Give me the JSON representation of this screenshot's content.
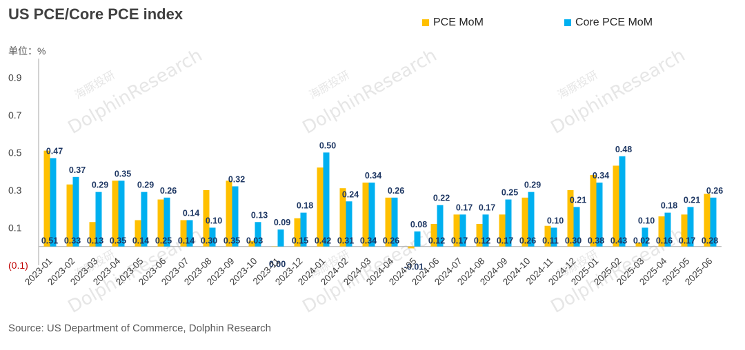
{
  "header": {
    "title": "US PCE/Core PCE index",
    "unit": "单位：%"
  },
  "footer": {
    "source": "Source: US Department of Commerce, Dolphin Research"
  },
  "watermark": {
    "brand_cn": "海豚投研",
    "brand_en": "DolphinResearch"
  },
  "colors": {
    "pce": "#FFC000",
    "core": "#00B0F0",
    "label_dark": "#1F3864",
    "negative_tick": "#C00000",
    "axis": "#A6A6A6",
    "text": "#404040"
  },
  "chart_data": {
    "type": "bar",
    "title": "US PCE/Core PCE index",
    "xlabel": "",
    "ylabel": "单位：%",
    "ylim": [
      -0.1,
      1.0
    ],
    "yticks": [
      "(0.1)",
      "0.1",
      "0.3",
      "0.5",
      "0.7",
      "0.9"
    ],
    "legend_position": "top-right",
    "grid": false,
    "categories": [
      "2023-01",
      "2023-02",
      "2023-03",
      "2023-04",
      "2023-05",
      "2023-06",
      "2023-07",
      "2023-08",
      "2023-09",
      "2023-10",
      "2023-11",
      "2023-12",
      "2024-01",
      "2024-02",
      "2024-03",
      "2024-04",
      "2024-05",
      "2024-06",
      "2024-07",
      "2024-08",
      "2024-09",
      "2024-10",
      "2024-11",
      "2024-12",
      "2025-01",
      "2025-02",
      "2025-03",
      "2025-04",
      "2025-05",
      "2025-06"
    ],
    "series": [
      {
        "name": "PCE MoM",
        "values": [
          0.51,
          0.33,
          0.13,
          0.35,
          0.14,
          0.25,
          0.14,
          0.3,
          0.35,
          0.03,
          0.0,
          0.15,
          0.42,
          0.31,
          0.34,
          0.26,
          -0.01,
          0.12,
          0.17,
          0.12,
          0.17,
          0.26,
          0.11,
          0.3,
          0.38,
          0.43,
          0.02,
          0.16,
          0.17,
          0.28
        ],
        "labels": [
          "0.51",
          "0.33",
          "0.13",
          "0.35",
          "0.14",
          "0.25",
          "0.14",
          "0.30",
          "0.35",
          "0.03",
          "0.00",
          "0.15",
          "0.42",
          "0.31",
          "0.34",
          "0.26",
          "-0.01",
          "0.12",
          "0.17",
          "0.12",
          "0.17",
          "0.26",
          "0.11",
          "0.30",
          "0.38",
          "0.43",
          "0.02",
          "0.16",
          "0.17",
          "0.28"
        ]
      },
      {
        "name": "Core PCE MoM",
        "values": [
          0.47,
          0.37,
          0.29,
          0.35,
          0.29,
          0.26,
          0.14,
          0.1,
          0.32,
          0.13,
          0.09,
          0.18,
          0.5,
          0.24,
          0.34,
          0.26,
          0.08,
          0.22,
          0.17,
          0.17,
          0.25,
          0.29,
          0.1,
          0.21,
          0.34,
          0.48,
          0.1,
          0.18,
          0.21,
          0.26
        ],
        "labels": [
          "0.47",
          "0.37",
          "0.29",
          "0.35",
          "0.29",
          "0.26",
          "0.14",
          "0.10",
          "0.32",
          "0.13",
          "0.09",
          "0.18",
          "0.50",
          "0.24",
          "0.34",
          "0.26",
          "0.08",
          "0.22",
          "0.17",
          "0.17",
          "0.25",
          "0.29",
          "0.10",
          "0.21",
          "0.34",
          "0.48",
          "0.10",
          "0.18",
          "0.21",
          "0.26"
        ]
      }
    ]
  }
}
